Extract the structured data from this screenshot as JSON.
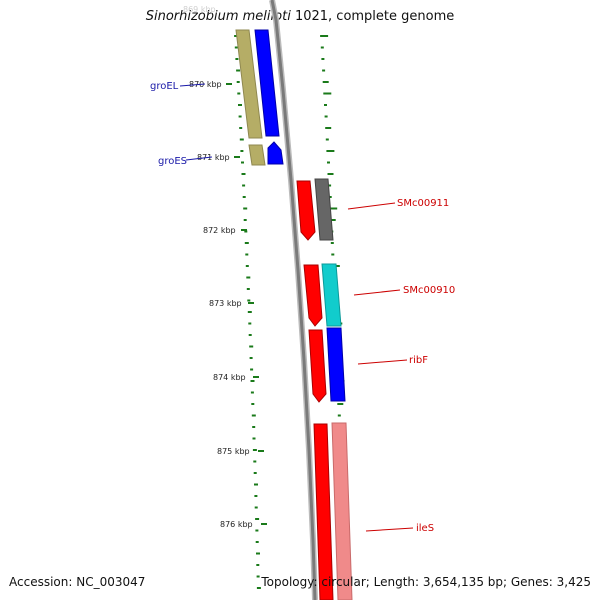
{
  "header": {
    "title_species": "Sinorhizobium meliloti",
    "title_rest": " 1021, complete genome"
  },
  "footer": {
    "accession": "Accession: NC_003047",
    "summary": "Topology: circular; Length: 3,654,135 bp; Genes: 3,425"
  },
  "ticks": [
    "869 kbp",
    "870 kbp",
    "871 kbp",
    "872 kbp",
    "873 kbp",
    "874 kbp",
    "875 kbp",
    "876 kbp"
  ],
  "genes": [
    {
      "label": "groEL",
      "strand": "forward",
      "color": "#0000ff",
      "pair_color": "#b5ad66"
    },
    {
      "label": "groES",
      "strand": "forward",
      "color": "#0000ff",
      "pair_color": "#b5ad66"
    },
    {
      "label": "SMc00911",
      "strand": "reverse",
      "color": "#ff0000",
      "pair_color": "#666666"
    },
    {
      "label": "SMc00910",
      "strand": "reverse",
      "color": "#ff0000",
      "pair_color": "#11cccc"
    },
    {
      "label": "ribF",
      "strand": "reverse",
      "color": "#ff0000",
      "pair_color": "#0000ff"
    },
    {
      "label": "ileS",
      "strand": "reverse",
      "color": "#ff0000",
      "pair_color": "#f08a8a"
    }
  ],
  "colors": {
    "backbone": "#888888",
    "gc_marks": "#1a7a1a",
    "forward_label": "#1a1aa8",
    "reverse_label": "#cc0000"
  }
}
